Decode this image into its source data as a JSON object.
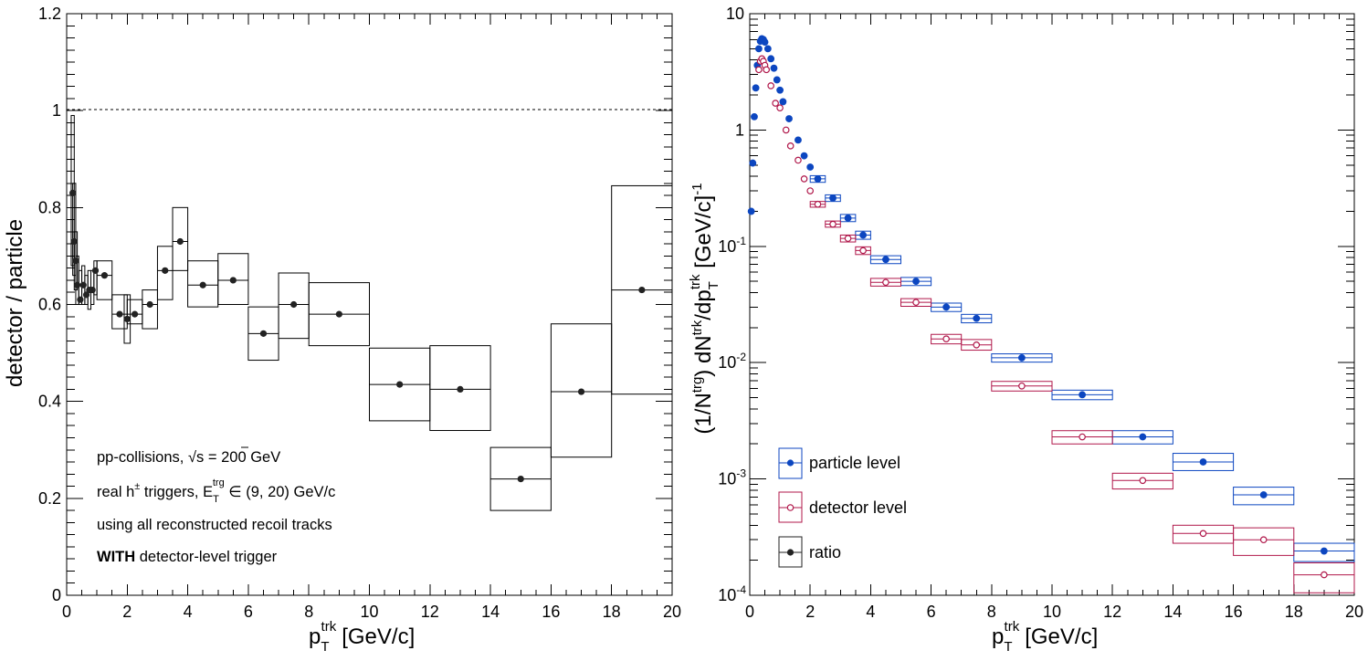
{
  "colors": {
    "ratio": "#222222",
    "particle": "#0c46c0",
    "detector": "#b0174a",
    "reference": "#000000"
  },
  "chart_data": [
    {
      "type": "scatter",
      "xlabel": "p_T^trk [GeV/c]",
      "xlabel_main": "p",
      "xlabel_sub": "T",
      "xlabel_sup": "trk",
      "xlabel_unit": "[GeV/c]",
      "ylabel": "detector / particle",
      "xlim": [
        0,
        20
      ],
      "ylim": [
        0,
        1.2
      ],
      "x_ticks": [
        "0",
        "2",
        "4",
        "6",
        "8",
        "10",
        "12",
        "14",
        "16",
        "18",
        "20"
      ],
      "y_ticks": [
        "0",
        "0.2",
        "0.4",
        "0.6",
        "0.8",
        "1",
        "1.2"
      ],
      "reference_line": 1,
      "annotations": {
        "line1_a": "pp-collisions, ",
        "line1_sqrt": "√s",
        "line1_b": " = 200 GeV",
        "line2_a": "real h",
        "line2_pm": "±",
        "line2_b": " triggers, E",
        "line2_sub": "T",
        "line2_sup": "trg",
        "line2_c": " ∈ (9, 20) GeV/c",
        "line3": "using all reconstructed recoil tracks",
        "line4_bold": "WITH",
        "line4_rest": " detector-level trigger"
      },
      "series": [
        {
          "name": "ratio",
          "points": [
            {
              "x": 0.2,
              "y": 0.83,
              "x_lo": 0.15,
              "x_hi": 0.25,
              "y_lo": 0.68,
              "y_hi": 0.99
            },
            {
              "x": 0.25,
              "y": 0.73,
              "x_lo": 0.2,
              "x_hi": 0.3,
              "y_lo": 0.66,
              "y_hi": 0.85
            },
            {
              "x": 0.3,
              "y": 0.69,
              "x_lo": 0.25,
              "x_hi": 0.35,
              "y_lo": 0.63,
              "y_hi": 0.75
            },
            {
              "x": 0.35,
              "y": 0.64,
              "x_lo": 0.3,
              "x_hi": 0.4,
              "y_lo": 0.6,
              "y_hi": 0.7
            },
            {
              "x": 0.45,
              "y": 0.61,
              "x_lo": 0.4,
              "x_hi": 0.5,
              "y_lo": 0.6,
              "y_hi": 0.67
            },
            {
              "x": 0.55,
              "y": 0.64,
              "x_lo": 0.5,
              "x_hi": 0.6,
              "y_lo": 0.6,
              "y_hi": 0.68
            },
            {
              "x": 0.65,
              "y": 0.62,
              "x_lo": 0.6,
              "x_hi": 0.7,
              "y_lo": 0.6,
              "y_hi": 0.66
            },
            {
              "x": 0.75,
              "y": 0.63,
              "x_lo": 0.7,
              "x_hi": 0.8,
              "y_lo": 0.59,
              "y_hi": 0.67
            },
            {
              "x": 0.85,
              "y": 0.63,
              "x_lo": 0.8,
              "x_hi": 0.9,
              "y_lo": 0.6,
              "y_hi": 0.67
            },
            {
              "x": 0.95,
              "y": 0.67,
              "x_lo": 0.9,
              "x_hi": 1.0,
              "y_lo": 0.62,
              "y_hi": 0.69
            },
            {
              "x": 1.25,
              "y": 0.66,
              "x_lo": 1.0,
              "x_hi": 1.5,
              "y_lo": 0.61,
              "y_hi": 0.69
            },
            {
              "x": 1.75,
              "y": 0.58,
              "x_lo": 1.5,
              "x_hi": 2.0,
              "y_lo": 0.55,
              "y_hi": 0.62
            },
            {
              "x": 2.0,
              "y": 0.57,
              "x_lo": 1.9,
              "x_hi": 2.1,
              "y_lo": 0.52,
              "y_hi": 0.62
            },
            {
              "x": 2.25,
              "y": 0.58,
              "x_lo": 2.0,
              "x_hi": 2.5,
              "y_lo": 0.56,
              "y_hi": 0.61
            },
            {
              "x": 2.75,
              "y": 0.6,
              "x_lo": 2.5,
              "x_hi": 3.0,
              "y_lo": 0.55,
              "y_hi": 0.63
            },
            {
              "x": 3.25,
              "y": 0.67,
              "x_lo": 3.0,
              "x_hi": 3.5,
              "y_lo": 0.61,
              "y_hi": 0.72
            },
            {
              "x": 3.75,
              "y": 0.73,
              "x_lo": 3.5,
              "x_hi": 4.0,
              "y_lo": 0.67,
              "y_hi": 0.8
            },
            {
              "x": 4.5,
              "y": 0.64,
              "x_lo": 4.0,
              "x_hi": 5.0,
              "y_lo": 0.595,
              "y_hi": 0.69
            },
            {
              "x": 5.5,
              "y": 0.65,
              "x_lo": 5.0,
              "x_hi": 6.0,
              "y_lo": 0.6,
              "y_hi": 0.705
            },
            {
              "x": 6.5,
              "y": 0.54,
              "x_lo": 6.0,
              "x_hi": 7.0,
              "y_lo": 0.485,
              "y_hi": 0.595
            },
            {
              "x": 7.5,
              "y": 0.6,
              "x_lo": 7.0,
              "x_hi": 8.0,
              "y_lo": 0.53,
              "y_hi": 0.665
            },
            {
              "x": 9.0,
              "y": 0.58,
              "x_lo": 8.0,
              "x_hi": 10.0,
              "y_lo": 0.515,
              "y_hi": 0.645
            },
            {
              "x": 11.0,
              "y": 0.435,
              "x_lo": 10.0,
              "x_hi": 12.0,
              "y_lo": 0.36,
              "y_hi": 0.51
            },
            {
              "x": 13.0,
              "y": 0.425,
              "x_lo": 12.0,
              "x_hi": 14.0,
              "y_lo": 0.34,
              "y_hi": 0.515
            },
            {
              "x": 15.0,
              "y": 0.24,
              "x_lo": 14.0,
              "x_hi": 16.0,
              "y_lo": 0.175,
              "y_hi": 0.305
            },
            {
              "x": 17.0,
              "y": 0.42,
              "x_lo": 16.0,
              "x_hi": 18.0,
              "y_lo": 0.285,
              "y_hi": 0.56
            },
            {
              "x": 19.0,
              "y": 0.63,
              "x_lo": 18.0,
              "x_hi": 20.0,
              "y_lo": 0.415,
              "y_hi": 0.845
            }
          ]
        }
      ]
    },
    {
      "type": "scatter",
      "xlabel": "p_T^trk [GeV/c]",
      "xlabel_main": "p",
      "xlabel_sub": "T",
      "xlabel_sup": "trk",
      "xlabel_unit": "[GeV/c]",
      "ylabel": "(1/N^trg) dN^trk/dp_T^trk [GeV/c]^-1",
      "ylabel_parts": [
        "(1/N",
        "trg",
        ") dN",
        "trk",
        "/dp",
        "T",
        "trk",
        " [GeV/c]",
        "-1"
      ],
      "xlim": [
        0,
        20
      ],
      "ylim": [
        0.0001,
        10
      ],
      "y_scale": "log",
      "x_ticks": [
        "0",
        "2",
        "4",
        "6",
        "8",
        "10",
        "12",
        "14",
        "16",
        "18",
        "20"
      ],
      "y_ticks": [
        {
          "base": "10",
          "exp": "-4",
          "value": 0.0001
        },
        {
          "base": "10",
          "exp": "-3",
          "value": 0.001
        },
        {
          "base": "10",
          "exp": "-2",
          "value": 0.01
        },
        {
          "base": "10",
          "exp": "-1",
          "value": 0.1
        },
        {
          "base": "1",
          "exp": "",
          "value": 1
        },
        {
          "base": "10",
          "exp": "",
          "value": 10
        }
      ],
      "legend": {
        "placement": "bottom-left",
        "entries": [
          {
            "label": "particle level",
            "series": "particle"
          },
          {
            "label": "detector level",
            "series": "detector"
          },
          {
            "label": "ratio",
            "series": "ratio"
          }
        ]
      },
      "series": [
        {
          "name": "particle level",
          "points": [
            {
              "x": 0.05,
              "y": 0.2
            },
            {
              "x": 0.1,
              "y": 0.52
            },
            {
              "x": 0.15,
              "y": 1.3
            },
            {
              "x": 0.2,
              "y": 2.3
            },
            {
              "x": 0.25,
              "y": 3.6
            },
            {
              "x": 0.3,
              "y": 5.0
            },
            {
              "x": 0.35,
              "y": 5.8
            },
            {
              "x": 0.4,
              "y": 6.1
            },
            {
              "x": 0.45,
              "y": 6.0
            },
            {
              "x": 0.5,
              "y": 5.7
            },
            {
              "x": 0.6,
              "y": 5.0
            },
            {
              "x": 0.7,
              "y": 4.1
            },
            {
              "x": 0.8,
              "y": 3.4
            },
            {
              "x": 0.9,
              "y": 2.7
            },
            {
              "x": 1.0,
              "y": 2.2
            },
            {
              "x": 1.1,
              "y": 1.75
            },
            {
              "x": 1.3,
              "y": 1.25
            },
            {
              "x": 1.6,
              "y": 0.82
            },
            {
              "x": 1.8,
              "y": 0.6
            },
            {
              "x": 2.0,
              "y": 0.48
            },
            {
              "x": 2.25,
              "y": 0.38,
              "x_lo": 2.0,
              "x_hi": 2.5,
              "y_lo": 0.355,
              "y_hi": 0.405
            },
            {
              "x": 2.75,
              "y": 0.26,
              "x_lo": 2.5,
              "x_hi": 3.0,
              "y_lo": 0.243,
              "y_hi": 0.277
            },
            {
              "x": 3.25,
              "y": 0.175,
              "x_lo": 3.0,
              "x_hi": 3.5,
              "y_lo": 0.163,
              "y_hi": 0.188
            },
            {
              "x": 3.75,
              "y": 0.125,
              "x_lo": 3.5,
              "x_hi": 4.0,
              "y_lo": 0.115,
              "y_hi": 0.135
            },
            {
              "x": 4.5,
              "y": 0.077,
              "x_lo": 4.0,
              "x_hi": 5.0,
              "y_lo": 0.071,
              "y_hi": 0.083
            },
            {
              "x": 5.5,
              "y": 0.05,
              "x_lo": 5.0,
              "x_hi": 6.0,
              "y_lo": 0.046,
              "y_hi": 0.054
            },
            {
              "x": 6.5,
              "y": 0.03,
              "x_lo": 6.0,
              "x_hi": 7.0,
              "y_lo": 0.0275,
              "y_hi": 0.0325
            },
            {
              "x": 7.5,
              "y": 0.024,
              "x_lo": 7.0,
              "x_hi": 8.0,
              "y_lo": 0.022,
              "y_hi": 0.026
            },
            {
              "x": 9.0,
              "y": 0.011,
              "x_lo": 8.0,
              "x_hi": 10.0,
              "y_lo": 0.0101,
              "y_hi": 0.0119
            },
            {
              "x": 11.0,
              "y": 0.0053,
              "x_lo": 10.0,
              "x_hi": 12.0,
              "y_lo": 0.0048,
              "y_hi": 0.0058
            },
            {
              "x": 13.0,
              "y": 0.0023,
              "x_lo": 12.0,
              "x_hi": 14.0,
              "y_lo": 0.002,
              "y_hi": 0.0026
            },
            {
              "x": 15.0,
              "y": 0.0014,
              "x_lo": 14.0,
              "x_hi": 16.0,
              "y_lo": 0.00118,
              "y_hi": 0.00166
            },
            {
              "x": 17.0,
              "y": 0.00073,
              "x_lo": 16.0,
              "x_hi": 18.0,
              "y_lo": 0.0006,
              "y_hi": 0.00085
            },
            {
              "x": 19.0,
              "y": 0.00024,
              "x_lo": 18.0,
              "x_hi": 20.0,
              "y_lo": 0.000195,
              "y_hi": 0.00028
            }
          ]
        },
        {
          "name": "detector level",
          "points": [
            {
              "x": 0.3,
              "y": 3.3
            },
            {
              "x": 0.35,
              "y": 3.9
            },
            {
              "x": 0.4,
              "y": 4.1
            },
            {
              "x": 0.45,
              "y": 3.9
            },
            {
              "x": 0.5,
              "y": 3.6
            },
            {
              "x": 0.55,
              "y": 3.3
            },
            {
              "x": 0.7,
              "y": 2.4
            },
            {
              "x": 0.85,
              "y": 1.7
            },
            {
              "x": 1.0,
              "y": 1.55
            },
            {
              "x": 1.2,
              "y": 1.0
            },
            {
              "x": 1.35,
              "y": 0.73
            },
            {
              "x": 1.6,
              "y": 0.55
            },
            {
              "x": 1.8,
              "y": 0.38
            },
            {
              "x": 2.0,
              "y": 0.3
            },
            {
              "x": 2.25,
              "y": 0.23,
              "x_lo": 2.0,
              "x_hi": 2.5,
              "y_lo": 0.217,
              "y_hi": 0.243
            },
            {
              "x": 2.75,
              "y": 0.155,
              "x_lo": 2.5,
              "x_hi": 3.0,
              "y_lo": 0.146,
              "y_hi": 0.165
            },
            {
              "x": 3.25,
              "y": 0.117,
              "x_lo": 3.0,
              "x_hi": 3.5,
              "y_lo": 0.109,
              "y_hi": 0.125
            },
            {
              "x": 3.75,
              "y": 0.092,
              "x_lo": 3.5,
              "x_hi": 4.0,
              "y_lo": 0.085,
              "y_hi": 0.099
            },
            {
              "x": 4.5,
              "y": 0.049,
              "x_lo": 4.0,
              "x_hi": 5.0,
              "y_lo": 0.0455,
              "y_hi": 0.053
            },
            {
              "x": 5.5,
              "y": 0.033,
              "x_lo": 5.0,
              "x_hi": 6.0,
              "y_lo": 0.0305,
              "y_hi": 0.0355
            },
            {
              "x": 6.5,
              "y": 0.016,
              "x_lo": 6.0,
              "x_hi": 7.0,
              "y_lo": 0.0145,
              "y_hi": 0.0175
            },
            {
              "x": 7.5,
              "y": 0.0142,
              "x_lo": 7.0,
              "x_hi": 8.0,
              "y_lo": 0.0128,
              "y_hi": 0.0158
            },
            {
              "x": 9.0,
              "y": 0.0063,
              "x_lo": 8.0,
              "x_hi": 10.0,
              "y_lo": 0.0057,
              "y_hi": 0.0069
            },
            {
              "x": 11.0,
              "y": 0.0023,
              "x_lo": 10.0,
              "x_hi": 12.0,
              "y_lo": 0.002,
              "y_hi": 0.0026
            },
            {
              "x": 13.0,
              "y": 0.00097,
              "x_lo": 12.0,
              "x_hi": 14.0,
              "y_lo": 0.00082,
              "y_hi": 0.00112
            },
            {
              "x": 15.0,
              "y": 0.00034,
              "x_lo": 14.0,
              "x_hi": 16.0,
              "y_lo": 0.00028,
              "y_hi": 0.0004
            },
            {
              "x": 17.0,
              "y": 0.0003,
              "x_lo": 16.0,
              "x_hi": 18.0,
              "y_lo": 0.00022,
              "y_hi": 0.00038
            },
            {
              "x": 19.0,
              "y": 0.00015,
              "x_lo": 18.0,
              "x_hi": 20.0,
              "y_lo": 0.000105,
              "y_hi": 0.00019
            }
          ]
        }
      ]
    }
  ]
}
